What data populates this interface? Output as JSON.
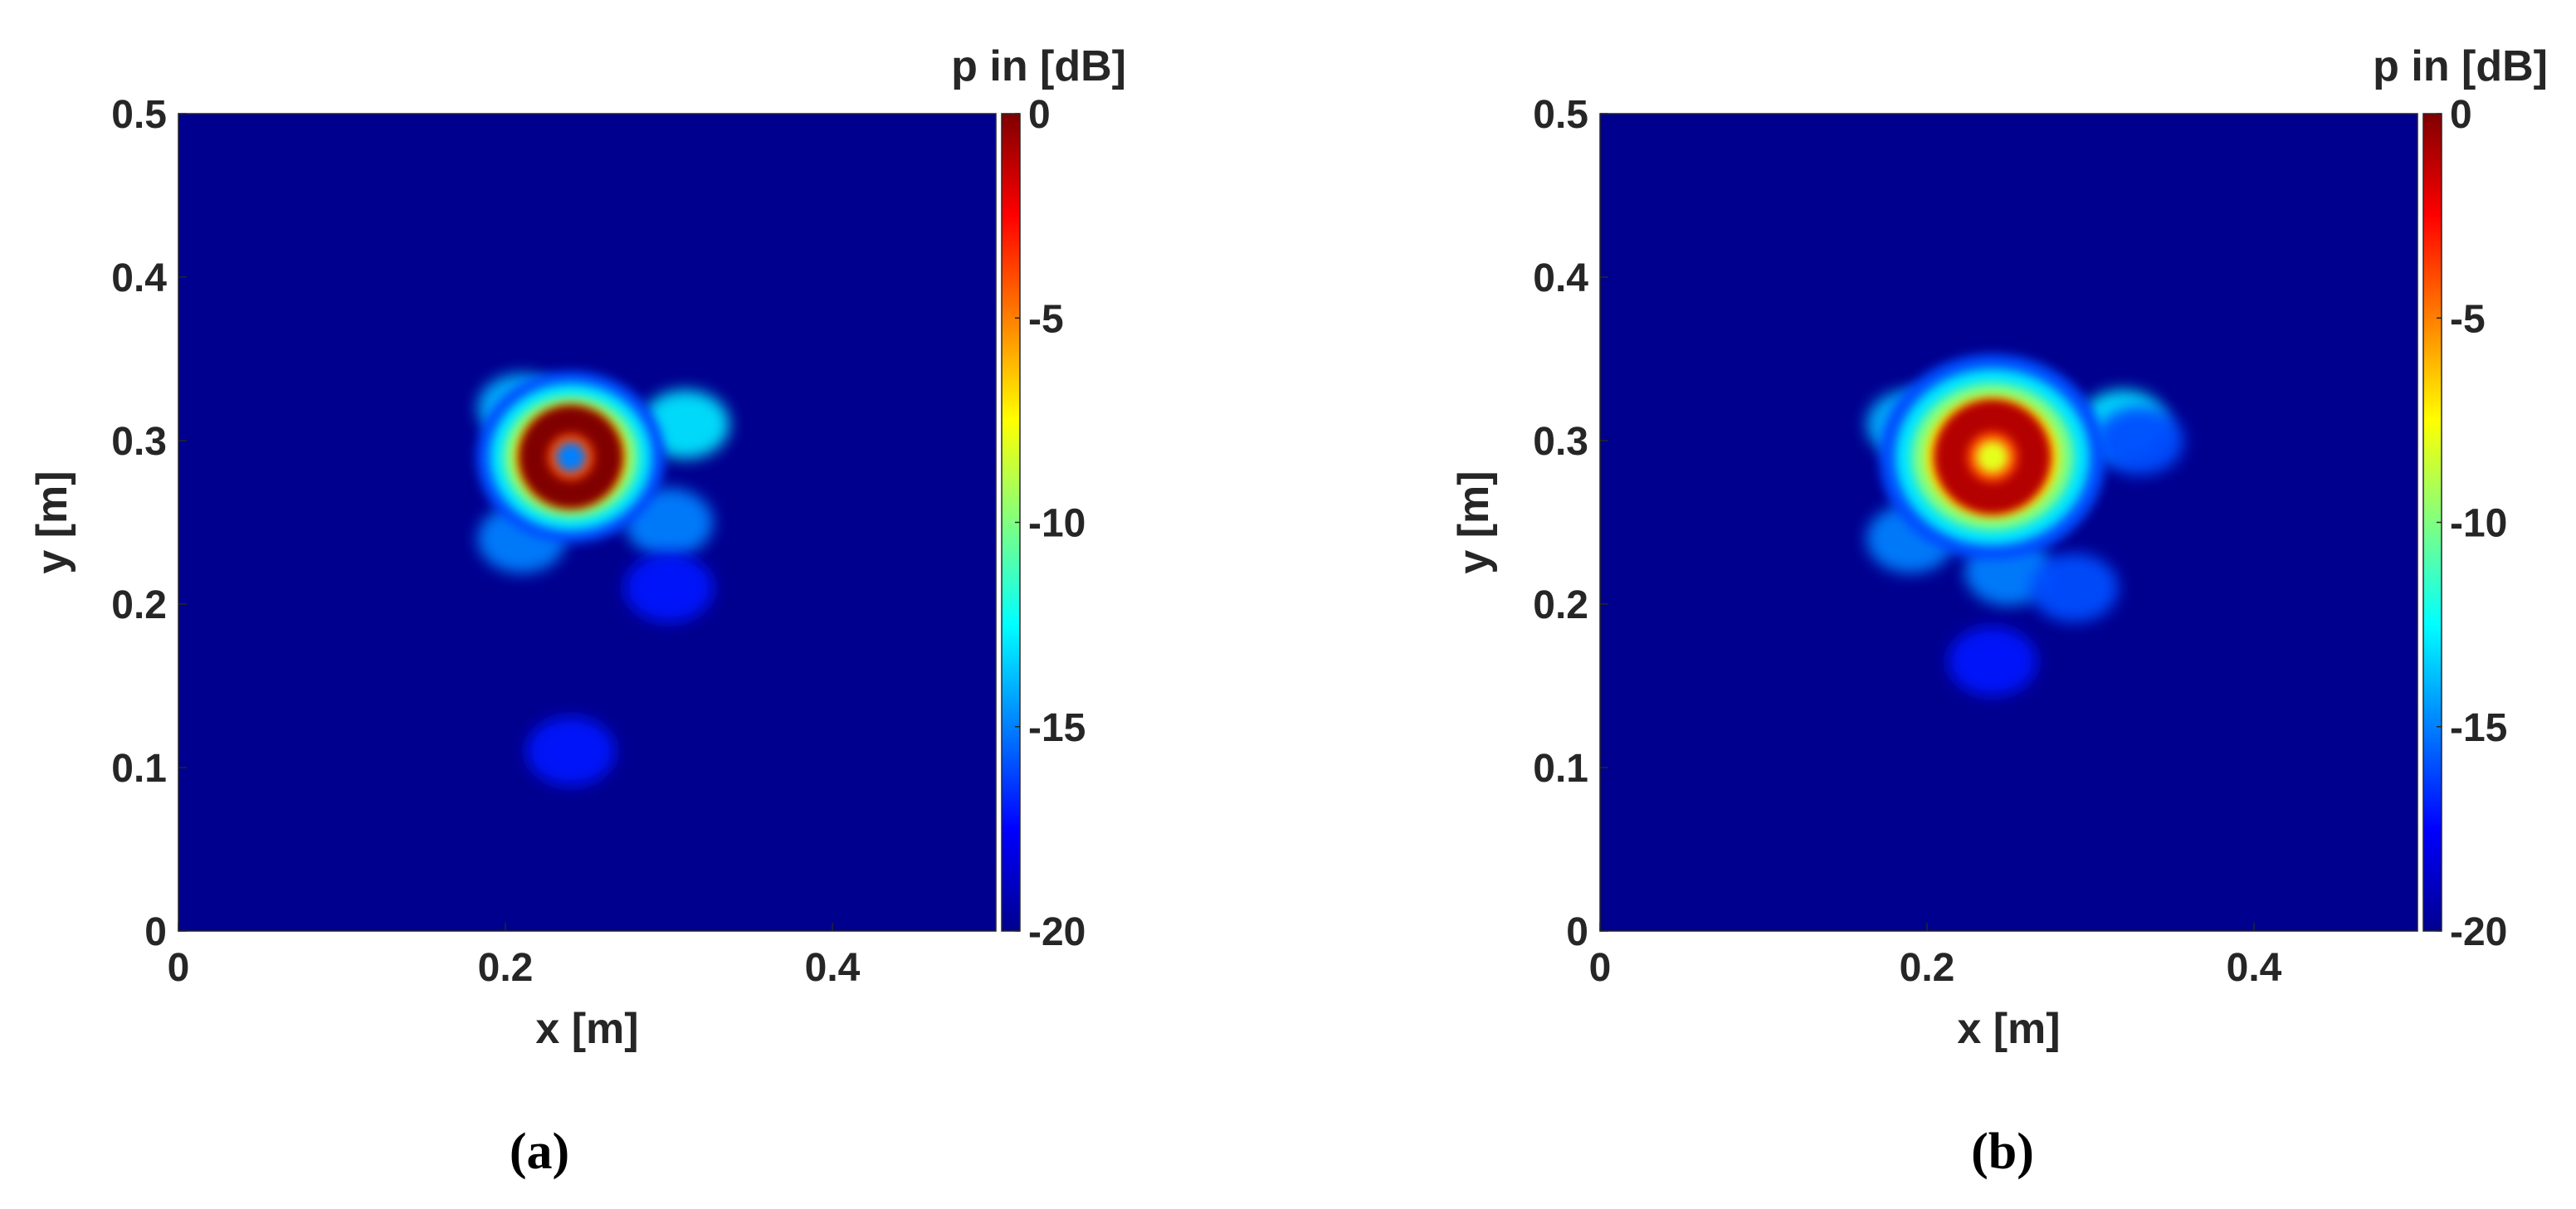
{
  "chart_data": [
    {
      "type": "heatmap",
      "panel_label": "(a)",
      "xlabel": "x [m]",
      "ylabel": "y [m]",
      "colorbar_label": "p in [dB]",
      "xlim": [
        0,
        0.5
      ],
      "ylim": [
        0,
        0.5
      ],
      "clim": [
        -20,
        0
      ],
      "colormap": "jet",
      "xticks": [
        0,
        0.2,
        0.4
      ],
      "xtick_labels": [
        "0",
        "0.2",
        "0.4"
      ],
      "yticks": [
        0,
        0.1,
        0.2,
        0.3,
        0.4,
        0.5
      ],
      "ytick_labels": [
        "0",
        "0.1",
        "0.2",
        "0.3",
        "0.4",
        "0.5"
      ],
      "cticks": [
        -20,
        -15,
        -10,
        -5,
        0
      ],
      "ctick_labels": [
        "-20",
        "-15",
        "-10",
        "-5",
        "0"
      ],
      "background_level_dB": -20,
      "hotspot": {
        "x": 0.24,
        "y": 0.29,
        "peak_dB": 0,
        "center_dB": -15,
        "ring_radius_m": 0.02,
        "extent_radius_m": 0.05
      },
      "features": [
        {
          "x": 0.21,
          "y": 0.32,
          "level_dB": -14
        },
        {
          "x": 0.31,
          "y": 0.31,
          "level_dB": -13
        },
        {
          "x": 0.3,
          "y": 0.25,
          "level_dB": -15
        },
        {
          "x": 0.21,
          "y": 0.24,
          "level_dB": -15
        },
        {
          "x": 0.3,
          "y": 0.21,
          "level_dB": -17
        },
        {
          "x": 0.24,
          "y": 0.11,
          "level_dB": -17
        }
      ]
    },
    {
      "type": "heatmap",
      "panel_label": "(b)",
      "xlabel": "x [m]",
      "ylabel": "y [m]",
      "colorbar_label": "p in [dB]",
      "xlim": [
        0,
        0.5
      ],
      "ylim": [
        0,
        0.5
      ],
      "clim": [
        -20,
        0
      ],
      "colormap": "jet",
      "xticks": [
        0,
        0.2,
        0.4
      ],
      "xtick_labels": [
        "0",
        "0.2",
        "0.4"
      ],
      "yticks": [
        0,
        0.1,
        0.2,
        0.3,
        0.4,
        0.5
      ],
      "ytick_labels": [
        "0",
        "0.1",
        "0.2",
        "0.3",
        "0.4",
        "0.5"
      ],
      "cticks": [
        -20,
        -15,
        -10,
        -5,
        0
      ],
      "ctick_labels": [
        "-20",
        "-15",
        "-10",
        "-5",
        "0"
      ],
      "background_level_dB": -20,
      "hotspot": {
        "x": 0.24,
        "y": 0.29,
        "peak_dB": -1,
        "center_dB": -8,
        "ring_radius_m": 0.022,
        "extent_radius_m": 0.06
      },
      "features": [
        {
          "x": 0.19,
          "y": 0.31,
          "level_dB": -14
        },
        {
          "x": 0.32,
          "y": 0.31,
          "level_dB": -13
        },
        {
          "x": 0.33,
          "y": 0.3,
          "level_dB": -16
        },
        {
          "x": 0.19,
          "y": 0.24,
          "level_dB": -15
        },
        {
          "x": 0.25,
          "y": 0.22,
          "level_dB": -15
        },
        {
          "x": 0.29,
          "y": 0.21,
          "level_dB": -16
        },
        {
          "x": 0.24,
          "y": 0.165,
          "level_dB": -17
        }
      ]
    }
  ]
}
